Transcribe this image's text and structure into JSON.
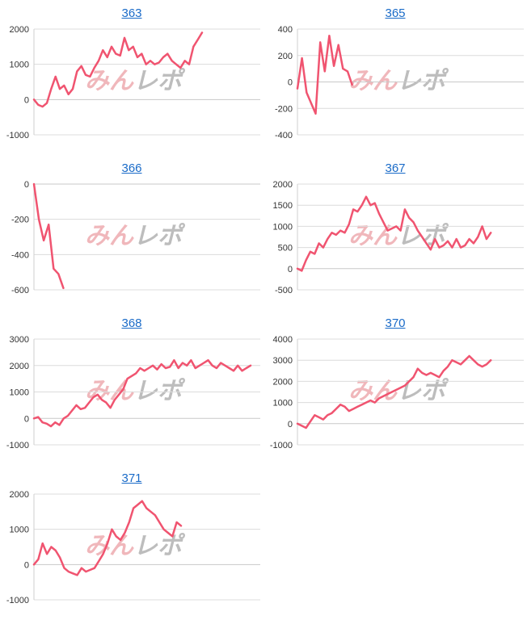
{
  "colors": {
    "series": "#f05470",
    "title_link": "#1a6bc8"
  },
  "watermark": {
    "part1": "みん",
    "part2": "レポ"
  },
  "chart_data": [
    {
      "title": "363",
      "type": "line",
      "ylim": [
        -1000,
        2000
      ],
      "yticks": [
        -1000,
        0,
        1000,
        2000
      ],
      "grid": true,
      "y": [
        0,
        -150,
        -200,
        -100,
        300,
        650,
        300,
        400,
        150,
        300,
        800,
        950,
        700,
        650,
        900,
        1100,
        1400,
        1200,
        1500,
        1300,
        1250,
        1750,
        1400,
        1500,
        1200,
        1300,
        1000,
        1100,
        1000,
        1050,
        1200,
        1300,
        1100,
        1000,
        900,
        1100,
        1000,
        1500,
        1700,
        1900
      ]
    },
    {
      "title": "365",
      "type": "line",
      "ylim": [
        -400,
        400
      ],
      "yticks": [
        -400,
        -200,
        0,
        200,
        400
      ],
      "grid": true,
      "y": [
        -50,
        180,
        -80,
        -160,
        -240,
        300,
        80,
        350,
        120,
        280,
        100,
        80,
        -20
      ]
    },
    {
      "title": "366",
      "type": "line",
      "ylim": [
        -600,
        0
      ],
      "yticks": [
        -600,
        -400,
        -200,
        0
      ],
      "grid": true,
      "y": [
        0,
        -200,
        -320,
        -230,
        -480,
        -510,
        -590
      ]
    },
    {
      "title": "367",
      "type": "line",
      "ylim": [
        -500,
        2000
      ],
      "yticks": [
        -500,
        0,
        500,
        1000,
        1500,
        2000
      ],
      "grid": true,
      "y": [
        0,
        -50,
        200,
        400,
        350,
        600,
        500,
        700,
        850,
        800,
        900,
        850,
        1050,
        1400,
        1350,
        1500,
        1700,
        1500,
        1550,
        1300,
        1100,
        900,
        950,
        1000,
        900,
        1400,
        1200,
        1100,
        900,
        750,
        600,
        450,
        700,
        500,
        550,
        650,
        500,
        700,
        500,
        550,
        700,
        600,
        750,
        1000,
        700,
        850
      ]
    },
    {
      "title": "368",
      "type": "line",
      "ylim": [
        -1000,
        3000
      ],
      "yticks": [
        -1000,
        0,
        1000,
        2000,
        3000
      ],
      "grid": true,
      "y": [
        0,
        50,
        -150,
        -200,
        -300,
        -150,
        -250,
        0,
        100,
        300,
        500,
        350,
        400,
        600,
        800,
        900,
        700,
        600,
        400,
        700,
        900,
        1100,
        1500,
        1600,
        1700,
        1900,
        1800,
        1900,
        2000,
        1850,
        2050,
        1900,
        1950,
        2200,
        1900,
        2100,
        2000,
        2200,
        1900,
        2000,
        2100,
        2200,
        2000,
        1900,
        2100,
        2000,
        1900,
        1800,
        2000,
        1800,
        1900,
        2000
      ]
    },
    {
      "title": "370",
      "type": "line",
      "ylim": [
        -1000,
        4000
      ],
      "yticks": [
        -1000,
        0,
        1000,
        2000,
        3000,
        4000
      ],
      "grid": true,
      "y": [
        0,
        -100,
        -200,
        100,
        400,
        300,
        200,
        400,
        500,
        700,
        900,
        800,
        600,
        700,
        800,
        900,
        1000,
        1100,
        1000,
        1200,
        1300,
        1400,
        1500,
        1600,
        1700,
        1800,
        2000,
        2200,
        2600,
        2400,
        2300,
        2400,
        2300,
        2200,
        2500,
        2700,
        3000,
        2900,
        2800,
        3000,
        3200,
        3000,
        2800,
        2700,
        2800,
        3000
      ]
    },
    {
      "title": "371",
      "type": "line",
      "ylim": [
        -1000,
        2000
      ],
      "yticks": [
        -1000,
        0,
        1000,
        2000
      ],
      "grid": true,
      "y": [
        0,
        150,
        600,
        300,
        500,
        400,
        200,
        -100,
        -200,
        -250,
        -300,
        -100,
        -200,
        -150,
        -100,
        100,
        300,
        600,
        1000,
        800,
        700,
        900,
        1200,
        1600,
        1700,
        1800,
        1600,
        1500,
        1400,
        1200,
        1000,
        900,
        800,
        1200,
        1100
      ]
    }
  ]
}
